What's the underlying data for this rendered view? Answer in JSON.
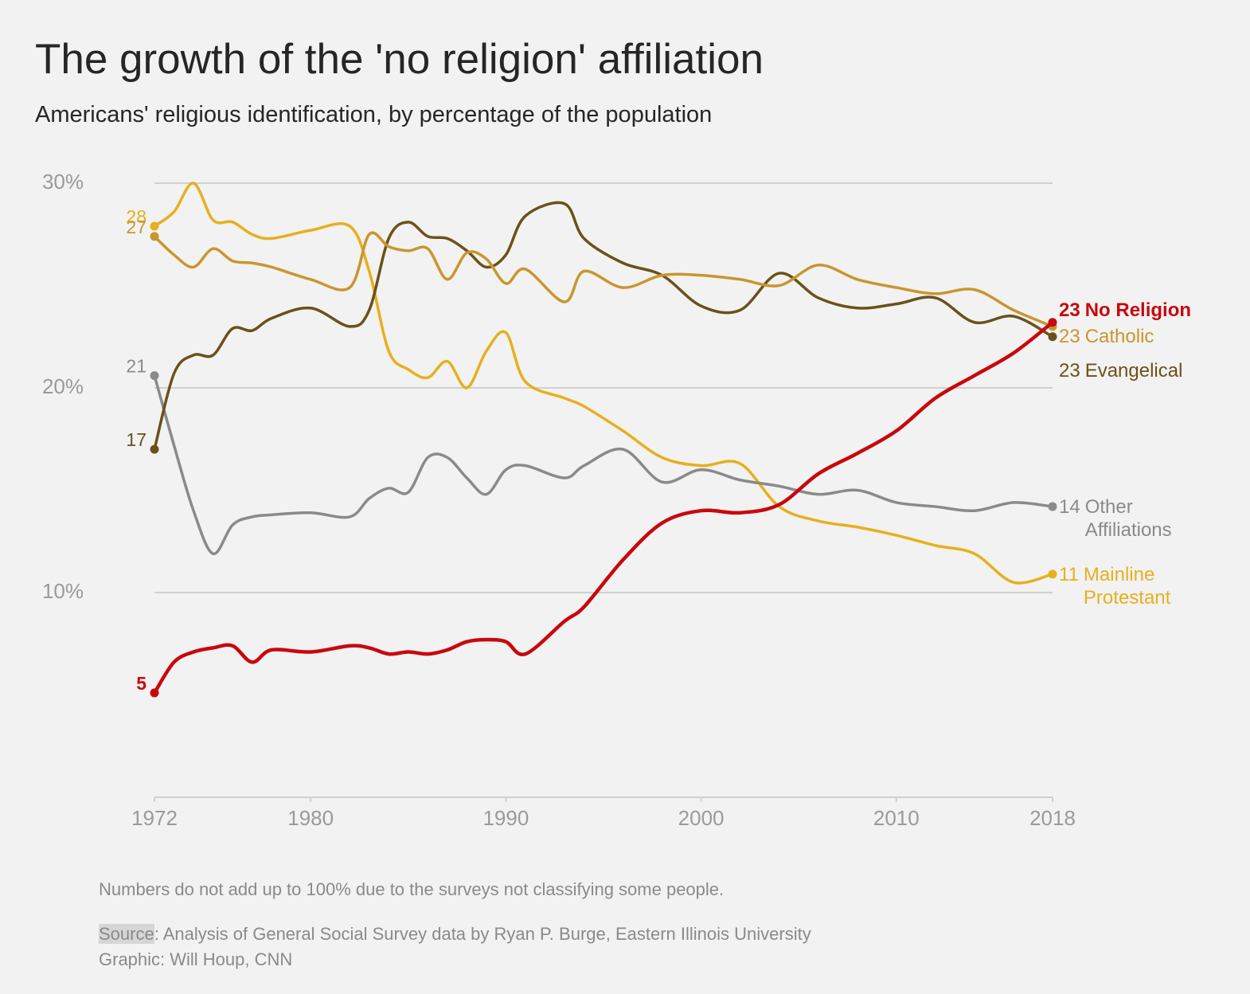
{
  "chart_data": {
    "type": "line",
    "title": "The growth of the 'no religion' affiliation",
    "subtitle": "Americans' religious identification, by percentage of the population",
    "x": [
      1972,
      1973,
      1974,
      1975,
      1976,
      1977,
      1978,
      1980,
      1982,
      1983,
      1984,
      1985,
      1986,
      1987,
      1988,
      1989,
      1990,
      1991,
      1993,
      1994,
      1996,
      1998,
      2000,
      2002,
      2004,
      2006,
      2008,
      2010,
      2012,
      2014,
      2016,
      2018
    ],
    "xlim": [
      1972,
      2018
    ],
    "xticks": [
      1972,
      1980,
      1990,
      2000,
      2010,
      2018
    ],
    "ylim": [
      0,
      30
    ],
    "yticks": [
      {
        "value": 10,
        "label": "10%"
      },
      {
        "value": 20,
        "label": "20%"
      },
      {
        "value": 30,
        "label": "30%"
      }
    ],
    "grid": true,
    "series": [
      {
        "name": "No Religion",
        "color": "#c8080e",
        "values": [
          5.1,
          6.6,
          7.1,
          7.3,
          7.4,
          6.6,
          7.2,
          7.1,
          7.4,
          7.3,
          7.0,
          7.1,
          7.0,
          7.2,
          7.6,
          7.7,
          7.6,
          7.0,
          8.6,
          9.3,
          11.6,
          13.4,
          14.0,
          13.9,
          14.3,
          15.8,
          16.8,
          17.9,
          19.5,
          20.6,
          21.7,
          23.2
        ],
        "value_labels": [
          "5",
          null,
          null,
          null,
          null,
          null,
          null,
          null,
          null,
          null,
          null,
          null,
          null,
          null,
          null,
          null,
          null,
          null,
          null,
          null,
          null,
          null,
          null,
          null,
          null,
          null,
          null,
          null,
          null,
          null,
          null,
          "23"
        ]
      },
      {
        "name": "Catholic",
        "color": "#c9962f",
        "values": [
          27.4,
          26.5,
          25.9,
          26.8,
          26.2,
          26.1,
          25.9,
          25.3,
          24.9,
          27.5,
          26.9,
          26.7,
          26.8,
          25.3,
          26.6,
          26.3,
          25.1,
          25.8,
          24.2,
          25.7,
          24.9,
          25.5,
          25.5,
          25.3,
          25.0,
          26.0,
          25.3,
          24.9,
          24.6,
          24.8,
          23.8,
          23.0
        ],
        "value_labels": [
          "27",
          null,
          null,
          null,
          null,
          null,
          null,
          null,
          null,
          null,
          null,
          null,
          null,
          null,
          null,
          null,
          null,
          null,
          null,
          null,
          null,
          null,
          null,
          null,
          null,
          null,
          null,
          null,
          null,
          null,
          null,
          "23"
        ]
      },
      {
        "name": "Evangelical",
        "color": "#6b5119",
        "values": [
          17.0,
          20.7,
          21.6,
          21.6,
          22.9,
          22.8,
          23.4,
          23.9,
          23.0,
          23.8,
          27.3,
          28.1,
          27.4,
          27.3,
          26.7,
          25.9,
          26.5,
          28.4,
          29.0,
          27.3,
          26.1,
          25.5,
          24.0,
          23.8,
          25.6,
          24.4,
          23.9,
          24.1,
          24.4,
          23.2,
          23.5,
          22.5
        ],
        "value_labels": [
          "17",
          null,
          null,
          null,
          null,
          null,
          null,
          null,
          null,
          null,
          null,
          null,
          null,
          null,
          null,
          null,
          null,
          null,
          null,
          null,
          null,
          null,
          null,
          null,
          null,
          null,
          null,
          null,
          null,
          null,
          null,
          "23"
        ]
      },
      {
        "name": "Other Affiliations",
        "color": "#8a8a8a",
        "values": [
          20.6,
          17.2,
          14.0,
          11.9,
          13.3,
          13.7,
          13.8,
          13.9,
          13.7,
          14.6,
          15.1,
          14.9,
          16.6,
          16.6,
          15.6,
          14.8,
          16.0,
          16.2,
          15.6,
          16.2,
          17.0,
          15.4,
          16.0,
          15.5,
          15.2,
          14.8,
          15.0,
          14.4,
          14.2,
          14.0,
          14.4,
          14.2
        ],
        "value_labels": [
          "21",
          null,
          null,
          null,
          null,
          null,
          null,
          null,
          null,
          null,
          null,
          null,
          null,
          null,
          null,
          null,
          null,
          null,
          null,
          null,
          null,
          null,
          null,
          null,
          null,
          null,
          null,
          null,
          null,
          null,
          null,
          "14"
        ]
      },
      {
        "name": "Mainline Protestant",
        "color": "#e6b01e",
        "values": [
          27.9,
          28.6,
          30.0,
          28.2,
          28.1,
          27.5,
          27.3,
          27.7,
          27.9,
          25.7,
          21.8,
          20.9,
          20.5,
          21.3,
          20.0,
          21.8,
          22.7,
          20.3,
          19.5,
          19.1,
          17.9,
          16.6,
          16.2,
          16.3,
          14.2,
          13.5,
          13.2,
          12.8,
          12.3,
          11.9,
          10.5,
          10.9
        ],
        "value_labels": [
          "28",
          null,
          null,
          null,
          null,
          null,
          null,
          null,
          null,
          null,
          null,
          null,
          null,
          null,
          null,
          null,
          null,
          null,
          null,
          null,
          null,
          null,
          null,
          null,
          null,
          null,
          null,
          null,
          null,
          null,
          null,
          "11"
        ]
      }
    ],
    "note": "Numbers do not add up to 100% due to the surveys not classifying some people.",
    "source_label": "Source",
    "source": ": Analysis of General Social Survey data by Ryan P. Burge, Eastern Illinois University",
    "credit": "Graphic: Will Houp, CNN"
  }
}
